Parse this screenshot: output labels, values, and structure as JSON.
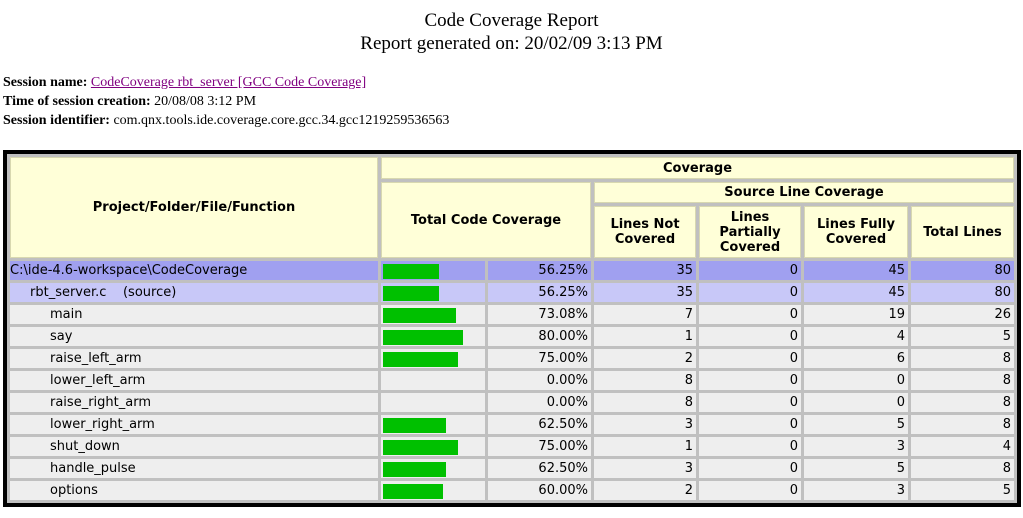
{
  "header": {
    "title": "Code Coverage Report",
    "subtitle": "Report generated on: 20/02/09 3:13 PM"
  },
  "session": {
    "name_label": "Session name:",
    "name": "CodeCoverage rbt_server [GCC Code Coverage]",
    "time_label": "Time of session creation:",
    "time": "20/08/08 3:12 PM",
    "id_label": "Session identifier:",
    "id": "com.qnx.tools.ide.coverage.core.gcc.34.gcc1219259536563"
  },
  "table": {
    "headers": {
      "name": "Project/Folder/File/Function",
      "coverage": "Coverage",
      "total": "Total Code Coverage",
      "source": "Source Line Coverage",
      "not_covered": "Lines Not Covered",
      "partial": "Lines Partially Covered",
      "full": "Lines Fully Covered",
      "lines": "Total Lines"
    },
    "project": {
      "name": "C:\\ide-4.6-workspace\\CodeCoverage",
      "coverage": {
        "value": 56.25,
        "label": "56.25%"
      },
      "not_covered": 35,
      "partial": 0,
      "full": 45,
      "lines": 80,
      "files": [
        {
          "name": "rbt_server.c",
          "kind": "(source)",
          "coverage": {
            "value": 56.25,
            "label": "56.25%"
          },
          "not_covered": 35,
          "partial": 0,
          "full": 45,
          "lines": 80,
          "functions": [
            {
              "name": "main",
              "coverage": {
                "value": 73.08,
                "label": "73.08%"
              },
              "not_covered": 7,
              "partial": 0,
              "full": 19,
              "lines": 26
            },
            {
              "name": "say",
              "coverage": {
                "value": 80,
                "label": "80.00%"
              },
              "not_covered": 1,
              "partial": 0,
              "full": 4,
              "lines": 5
            },
            {
              "name": "raise_left_arm",
              "coverage": {
                "value": 75,
                "label": "75.00%"
              },
              "not_covered": 2,
              "partial": 0,
              "full": 6,
              "lines": 8
            },
            {
              "name": "lower_left_arm",
              "coverage": {
                "value": 0,
                "label": "0.00%"
              },
              "not_covered": 8,
              "partial": 0,
              "full": 0,
              "lines": 8
            },
            {
              "name": "raise_right_arm",
              "coverage": {
                "value": 0,
                "label": "0.00%"
              },
              "not_covered": 8,
              "partial": 0,
              "full": 0,
              "lines": 8
            },
            {
              "name": "lower_right_arm",
              "coverage": {
                "value": 62.5,
                "label": "62.50%"
              },
              "not_covered": 3,
              "partial": 0,
              "full": 5,
              "lines": 8
            },
            {
              "name": "shut_down",
              "coverage": {
                "value": 75,
                "label": "75.00%"
              },
              "not_covered": 1,
              "partial": 0,
              "full": 3,
              "lines": 4
            },
            {
              "name": "handle_pulse",
              "coverage": {
                "value": 62.5,
                "label": "62.50%"
              },
              "not_covered": 3,
              "partial": 0,
              "full": 5,
              "lines": 8
            },
            {
              "name": "options",
              "coverage": {
                "value": 60,
                "label": "60.00%"
              },
              "not_covered": 2,
              "partial": 0,
              "full": 3,
              "lines": 5
            }
          ]
        }
      ]
    }
  }
}
